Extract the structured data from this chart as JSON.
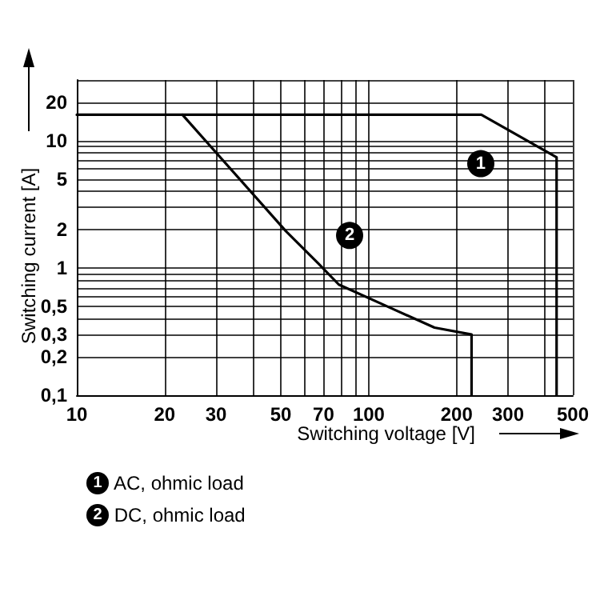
{
  "chart_data": {
    "type": "line",
    "xlabel": "Switching voltage [V]",
    "ylabel": "Switching current [A]",
    "log": "xy",
    "grid": true,
    "legend": "bottom left",
    "marker": "none",
    "line_style": "solid",
    "xlim": [
      10,
      500
    ],
    "ylim": [
      0.1,
      30
    ],
    "xticks": [
      10,
      20,
      30,
      {
        "value": 40,
        "label": null
      },
      50,
      {
        "value": 60,
        "label": null
      },
      70,
      {
        "value": 80,
        "label": null
      },
      {
        "value": 90,
        "label": null
      },
      100,
      200,
      300,
      {
        "value": 400,
        "label": null
      },
      500
    ],
    "yticks": [
      {
        "value": 0.1,
        "label": "0,1"
      },
      {
        "value": 0.2,
        "label": "0,2"
      },
      {
        "value": 0.3,
        "label": "0,3"
      },
      {
        "value": 0.4,
        "label": null
      },
      {
        "value": 0.5,
        "label": "0,5"
      },
      {
        "value": 0.6,
        "label": null
      },
      {
        "value": 0.7,
        "label": null
      },
      {
        "value": 0.8,
        "label": null
      },
      {
        "value": 0.9,
        "label": null
      },
      1,
      2,
      {
        "value": 3,
        "label": null
      },
      {
        "value": 4,
        "label": null
      },
      5,
      {
        "value": 6,
        "label": null
      },
      {
        "value": 7,
        "label": null
      },
      {
        "value": 8,
        "label": null
      },
      {
        "value": 9,
        "label": null
      },
      10,
      20,
      {
        "value": 30,
        "label": null
      }
    ],
    "series": [
      {
        "name": "AC, ohmic load",
        "color": "#000000",
        "x": [
          10,
          243,
          440,
          440
        ],
        "values": [
          16,
          16,
          7.4,
          0.1
        ]
      },
      {
        "name": "DC, ohmic load",
        "color": "#000000",
        "x": [
          23,
          52,
          67,
          79,
          120,
          168,
          225,
          225
        ],
        "values": [
          16,
          1.95,
          1.09,
          0.74,
          0.48,
          0.34,
          0.3,
          0.1
        ]
      }
    ],
    "annotations": [
      {
        "text": "1",
        "x": 242,
        "y": 6.6
      },
      {
        "text": "2",
        "x": 86,
        "y": 1.8
      }
    ]
  }
}
